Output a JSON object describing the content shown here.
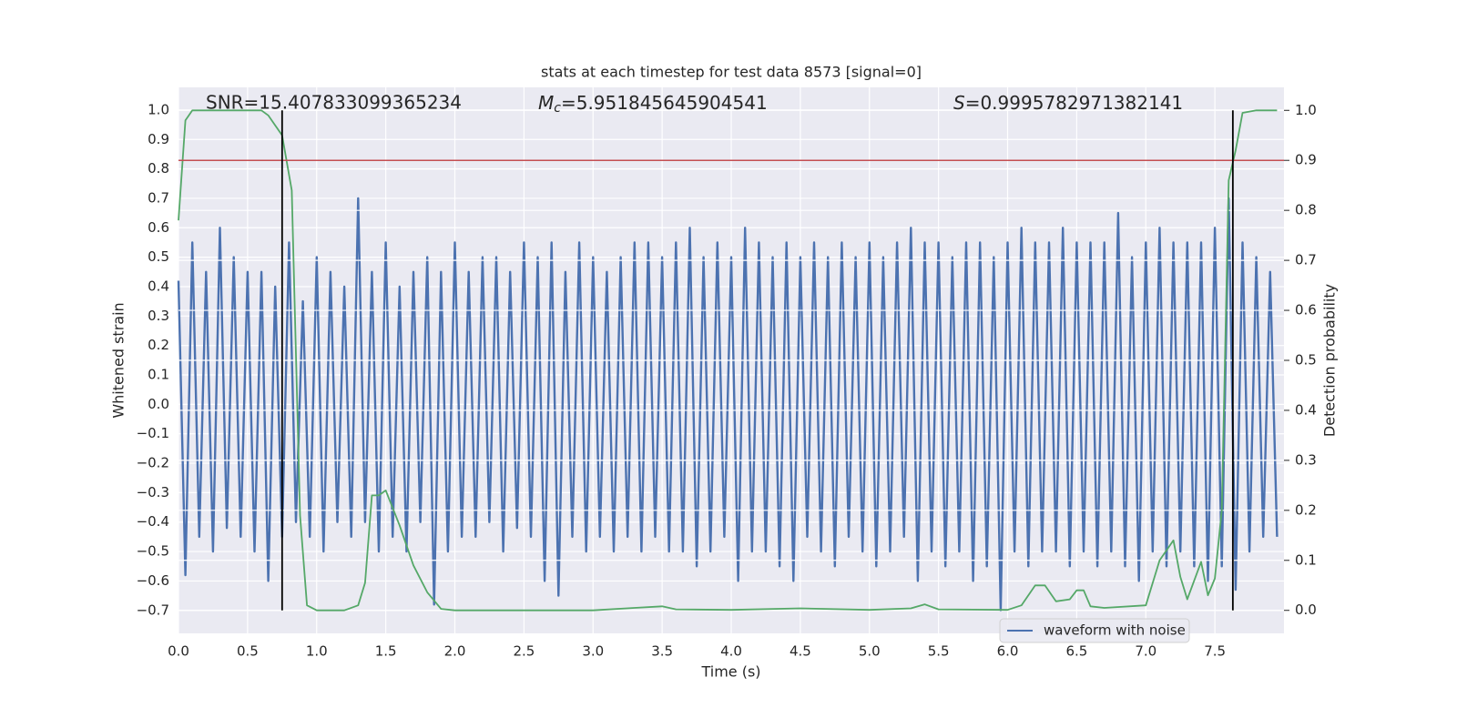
{
  "chart_data": {
    "type": "line",
    "title": "stats at each timestep for test data 8573 [signal=0]",
    "xlabel": "Time (s)",
    "ylabel": "Whitened strain",
    "y2label": "Detection probability",
    "annotations": [
      {
        "text": "SNR=15.407833099365234"
      },
      {
        "symbol": "M",
        "subscript": "c",
        "text": "=5.951845645904541"
      },
      {
        "symbol": "S",
        "text": "=0.9995782971382141"
      }
    ],
    "xlim": [
      0,
      8
    ],
    "ylim": [
      -0.778,
      1.077
    ],
    "y2lim": [
      -0.046,
      1.046
    ],
    "xticks": [
      {
        "value": 0,
        "label": "0.0"
      },
      {
        "value": 0.5,
        "label": "0.5"
      },
      {
        "value": 1,
        "label": "1.0"
      },
      {
        "value": 1.5,
        "label": "1.5"
      },
      {
        "value": 2,
        "label": "2.0"
      },
      {
        "value": 2.5,
        "label": "2.5"
      },
      {
        "value": 3,
        "label": "3.0"
      },
      {
        "value": 3.5,
        "label": "3.5"
      },
      {
        "value": 4,
        "label": "4.0"
      },
      {
        "value": 4.5,
        "label": "4.5"
      },
      {
        "value": 5,
        "label": "5.0"
      },
      {
        "value": 5.5,
        "label": "5.5"
      },
      {
        "value": 6,
        "label": "6.0"
      },
      {
        "value": 6.5,
        "label": "6.5"
      },
      {
        "value": 7,
        "label": "7.0"
      },
      {
        "value": 7.5,
        "label": "7.5"
      }
    ],
    "yticks": [
      {
        "value": -0.7,
        "label": "−0.7"
      },
      {
        "value": -0.6,
        "label": "−0.6"
      },
      {
        "value": -0.5,
        "label": "−0.5"
      },
      {
        "value": -0.4,
        "label": "−0.4"
      },
      {
        "value": -0.3,
        "label": "−0.3"
      },
      {
        "value": -0.2,
        "label": "−0.2"
      },
      {
        "value": -0.1,
        "label": "−0.1"
      },
      {
        "value": 0,
        "label": "0.0"
      },
      {
        "value": 0.1,
        "label": "0.1"
      },
      {
        "value": 0.2,
        "label": "0.2"
      },
      {
        "value": 0.3,
        "label": "0.3"
      },
      {
        "value": 0.4,
        "label": "0.4"
      },
      {
        "value": 0.5,
        "label": "0.5"
      },
      {
        "value": 0.6,
        "label": "0.6"
      },
      {
        "value": 0.7,
        "label": "0.7"
      },
      {
        "value": 0.8,
        "label": "0.8"
      },
      {
        "value": 0.9,
        "label": "0.9"
      },
      {
        "value": 1,
        "label": "1.0"
      }
    ],
    "y2ticks": [
      {
        "value": 0,
        "label": "0.0"
      },
      {
        "value": 0.1,
        "label": "0.1"
      },
      {
        "value": 0.2,
        "label": "0.2"
      },
      {
        "value": 0.3,
        "label": "0.3"
      },
      {
        "value": 0.4,
        "label": "0.4"
      },
      {
        "value": 0.5,
        "label": "0.5"
      },
      {
        "value": 0.6,
        "label": "0.6"
      },
      {
        "value": 0.7,
        "label": "0.7"
      },
      {
        "value": 0.8,
        "label": "0.8"
      },
      {
        "value": 0.9,
        "label": "0.9"
      },
      {
        "value": 1,
        "label": "1.0"
      }
    ],
    "grid": true,
    "legend": "lower right",
    "threshold": {
      "value": 0.9,
      "axis": "y2",
      "color": "#c44e52"
    },
    "vlines": {
      "x": [
        0.75,
        7.63
      ],
      "ylim_y2": [
        0,
        1
      ],
      "color": "#000000"
    },
    "series": [
      {
        "name": "waveform with noise",
        "color": "#4c72b0",
        "x": [
          0,
          0.05,
          0.1,
          0.15,
          0.2,
          0.25,
          0.3,
          0.35,
          0.4,
          0.45,
          0.5,
          0.55,
          0.6,
          0.65,
          0.7,
          0.75,
          0.8,
          0.85,
          0.9,
          0.95,
          1,
          1.05,
          1.1,
          1.15,
          1.2,
          1.25,
          1.3,
          1.35,
          1.4,
          1.45,
          1.5,
          1.55,
          1.6,
          1.65,
          1.7,
          1.75,
          1.8,
          1.85,
          1.9,
          1.95,
          2,
          2.05,
          2.1,
          2.15,
          2.2,
          2.25,
          2.3,
          2.35,
          2.4,
          2.45,
          2.5,
          2.55,
          2.6,
          2.65,
          2.7,
          2.75,
          2.8,
          2.85,
          2.9,
          2.95,
          3,
          3.05,
          3.1,
          3.15,
          3.2,
          3.25,
          3.3,
          3.35,
          3.4,
          3.45,
          3.5,
          3.55,
          3.6,
          3.65,
          3.7,
          3.75,
          3.8,
          3.85,
          3.9,
          3.95,
          4,
          4.05,
          4.1,
          4.15,
          4.2,
          4.25,
          4.3,
          4.35,
          4.4,
          4.45,
          4.5,
          4.55,
          4.6,
          4.65,
          4.7,
          4.75,
          4.8,
          4.85,
          4.9,
          4.95,
          5,
          5.05,
          5.1,
          5.15,
          5.2,
          5.25,
          5.3,
          5.35,
          5.4,
          5.45,
          5.5,
          5.55,
          5.6,
          5.65,
          5.7,
          5.75,
          5.8,
          5.85,
          5.9,
          5.95,
          6,
          6.05,
          6.1,
          6.15,
          6.2,
          6.25,
          6.3,
          6.35,
          6.4,
          6.45,
          6.5,
          6.55,
          6.6,
          6.65,
          6.7,
          6.75,
          6.8,
          6.85,
          6.9,
          6.95,
          7,
          7.05,
          7.1,
          7.15,
          7.2,
          7.25,
          7.3,
          7.35,
          7.4,
          7.45,
          7.5,
          7.55,
          7.6,
          7.65,
          7.7,
          7.75,
          7.8,
          7.85,
          7.9,
          7.95
        ],
        "values": [
          0.42,
          -0.58,
          0.55,
          -0.45,
          0.45,
          -0.5,
          0.6,
          -0.42,
          0.5,
          -0.45,
          0.45,
          -0.5,
          0.45,
          -0.6,
          0.4,
          -0.45,
          0.55,
          -0.4,
          0.35,
          -0.45,
          0.5,
          -0.5,
          0.45,
          -0.4,
          0.4,
          -0.45,
          0.7,
          -0.4,
          0.45,
          -0.5,
          0.55,
          -0.45,
          0.4,
          -0.5,
          0.45,
          -0.4,
          0.5,
          -0.68,
          0.45,
          -0.5,
          0.55,
          -0.45,
          0.45,
          -0.45,
          0.5,
          -0.4,
          0.5,
          -0.5,
          0.45,
          -0.42,
          0.55,
          -0.45,
          0.5,
          -0.6,
          0.55,
          -0.65,
          0.45,
          -0.45,
          0.55,
          -0.5,
          0.5,
          -0.45,
          0.45,
          -0.5,
          0.5,
          -0.45,
          0.55,
          -0.5,
          0.55,
          -0.45,
          0.5,
          -0.5,
          0.55,
          -0.5,
          0.6,
          -0.55,
          0.5,
          -0.5,
          0.55,
          -0.45,
          0.5,
          -0.6,
          0.6,
          -0.5,
          0.55,
          -0.5,
          0.5,
          -0.55,
          0.55,
          -0.6,
          0.5,
          -0.45,
          0.55,
          -0.5,
          0.5,
          -0.55,
          0.55,
          -0.45,
          0.5,
          -0.5,
          0.55,
          -0.55,
          0.5,
          -0.5,
          0.55,
          -0.45,
          0.6,
          -0.6,
          0.55,
          -0.5,
          0.55,
          -0.55,
          0.5,
          -0.5,
          0.55,
          -0.6,
          0.55,
          -0.55,
          0.5,
          -0.7,
          0.55,
          -0.5,
          0.6,
          -0.55,
          0.55,
          -0.5,
          0.55,
          -0.5,
          0.6,
          -0.55,
          0.55,
          -0.5,
          0.55,
          -0.55,
          0.55,
          -0.5,
          0.65,
          -0.55,
          0.5,
          -0.6,
          0.55,
          -0.5,
          0.6,
          -0.55,
          0.55,
          -0.5,
          0.55,
          -0.55,
          0.55,
          -0.6,
          0.6,
          -0.55,
          0.7,
          -0.63,
          0.55,
          -0.5,
          0.5,
          -0.45,
          0.45,
          -0.45
        ]
      },
      {
        "color": "#55a868",
        "axis": "y2",
        "x": [
          0,
          0.05,
          0.1,
          0.2,
          0.3,
          0.4,
          0.5,
          0.6,
          0.65,
          0.7,
          0.75,
          0.82,
          0.88,
          0.93,
          1,
          1.1,
          1.2,
          1.3,
          1.35,
          1.4,
          1.45,
          1.5,
          1.6,
          1.7,
          1.8,
          1.9,
          2,
          2.5,
          3,
          3.3,
          3.5,
          3.6,
          4,
          4.5,
          5,
          5.3,
          5.4,
          5.5,
          6,
          6.1,
          6.2,
          6.27,
          6.35,
          6.45,
          6.5,
          6.55,
          6.6,
          6.7,
          7,
          7.1,
          7.2,
          7.25,
          7.3,
          7.4,
          7.45,
          7.5,
          7.55,
          7.6,
          7.65,
          7.7,
          7.8,
          7.95
        ],
        "values": [
          0.78,
          0.98,
          1,
          1,
          1,
          1,
          1,
          1,
          0.99,
          0.97,
          0.95,
          0.84,
          0.19,
          0.01,
          0,
          0,
          0,
          0.01,
          0.055,
          0.23,
          0.23,
          0.24,
          0.17,
          0.09,
          0.036,
          0.003,
          0,
          0,
          0,
          0.005,
          0.008,
          0.002,
          0.001,
          0.004,
          0.001,
          0.004,
          0.012,
          0.002,
          0.001,
          0.01,
          0.05,
          0.05,
          0.018,
          0.022,
          0.04,
          0.04,
          0.008,
          0.005,
          0.01,
          0.1,
          0.14,
          0.067,
          0.022,
          0.097,
          0.03,
          0.064,
          0.2,
          0.86,
          0.92,
          0.995,
          1,
          1
        ]
      }
    ]
  }
}
